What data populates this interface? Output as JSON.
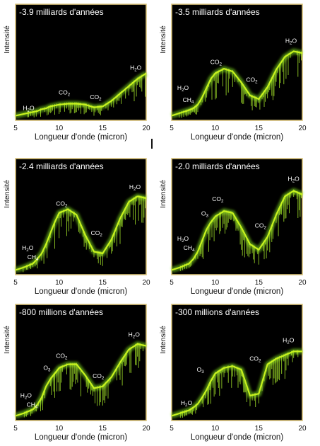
{
  "chart_data": [
    {
      "type": "line",
      "title": "-3.9 milliards d'années",
      "xlabel": "Longueur d'onde (micron)",
      "ylabel": "Intensité",
      "xlim": [
        5,
        20
      ],
      "ylim": [
        0,
        1
      ],
      "xticks": [
        "5",
        "10",
        "15",
        "20"
      ],
      "series_color": "#c8f21e",
      "x": [
        5,
        6,
        7,
        7.5,
        8,
        8.5,
        9,
        9.5,
        10,
        11,
        12,
        13,
        14,
        15,
        16,
        17,
        18,
        19,
        20
      ],
      "y": [
        0.02,
        0.04,
        0.06,
        0.07,
        0.09,
        0.1,
        0.12,
        0.13,
        0.14,
        0.15,
        0.15,
        0.14,
        0.11,
        0.12,
        0.18,
        0.26,
        0.34,
        0.42,
        0.48
      ],
      "annotations": [
        {
          "text": "H₂O",
          "x": 6.5,
          "y": 0.08
        },
        {
          "text": "CO₂",
          "x": 10.6,
          "y": 0.25
        },
        {
          "text": "CO₂",
          "x": 14.2,
          "y": 0.2
        },
        {
          "text": "H₂O",
          "x": 18.8,
          "y": 0.52
        }
      ]
    },
    {
      "type": "line",
      "title": "-3.5 milliards d'années",
      "xlabel": "Longueur d'onde (micron)",
      "ylabel": "Intensité",
      "xlim": [
        5,
        20
      ],
      "ylim": [
        0,
        1
      ],
      "xticks": [
        "5",
        "10",
        "15",
        "20"
      ],
      "series_color": "#c8f21e",
      "x": [
        5,
        6,
        7,
        7.5,
        8,
        8.5,
        9,
        9.5,
        10,
        11,
        12,
        13,
        14,
        15,
        16,
        17,
        18,
        19,
        20
      ],
      "y": [
        0.02,
        0.05,
        0.08,
        0.1,
        0.14,
        0.22,
        0.32,
        0.42,
        0.48,
        0.53,
        0.5,
        0.38,
        0.24,
        0.2,
        0.33,
        0.52,
        0.66,
        0.72,
        0.7
      ],
      "annotations": [
        {
          "text": "H₂O",
          "x": 6.3,
          "y": 0.3
        },
        {
          "text": "CH₄",
          "x": 6.9,
          "y": 0.17
        },
        {
          "text": "CO₂",
          "x": 10.1,
          "y": 0.58
        },
        {
          "text": "CO₂",
          "x": 14.2,
          "y": 0.39
        },
        {
          "text": "H₂O",
          "x": 18.7,
          "y": 0.81
        }
      ]
    },
    {
      "type": "line",
      "title": "-2.4 milliards d'années",
      "xlabel": "Longueur d'onde (micron)",
      "ylabel": "Intensité",
      "xlim": [
        5,
        20
      ],
      "ylim": [
        0,
        1
      ],
      "xticks": [
        "5",
        "10",
        "15",
        "20"
      ],
      "series_color": "#c8f21e",
      "x": [
        5,
        6,
        7,
        7.5,
        8,
        8.5,
        9,
        9.5,
        10,
        11,
        12,
        13,
        14,
        15,
        16,
        17,
        18,
        19,
        20
      ],
      "y": [
        0.02,
        0.05,
        0.09,
        0.14,
        0.2,
        0.3,
        0.42,
        0.54,
        0.64,
        0.68,
        0.62,
        0.4,
        0.22,
        0.2,
        0.35,
        0.58,
        0.76,
        0.82,
        0.8
      ],
      "annotations": [
        {
          "text": "H₂O",
          "x": 6.4,
          "y": 0.24
        },
        {
          "text": "CH₄",
          "x": 7.0,
          "y": 0.14
        },
        {
          "text": "CO₂",
          "x": 10.3,
          "y": 0.72
        },
        {
          "text": "CO₂",
          "x": 14.3,
          "y": 0.4
        },
        {
          "text": "H₂O",
          "x": 18.7,
          "y": 0.9
        }
      ]
    },
    {
      "type": "line",
      "title": "-2.0 milliards d'années",
      "xlabel": "Longueur d'onde (micron)",
      "ylabel": "Intensité",
      "xlim": [
        5,
        20
      ],
      "ylim": [
        0,
        1
      ],
      "xticks": [
        "5",
        "10",
        "15",
        "20"
      ],
      "series_color": "#c8f21e",
      "x": [
        5,
        6,
        7,
        7.5,
        8,
        8.5,
        9,
        9.5,
        10,
        11,
        12,
        13,
        14,
        15,
        16,
        17,
        18,
        19,
        20
      ],
      "y": [
        0.02,
        0.05,
        0.09,
        0.14,
        0.22,
        0.34,
        0.46,
        0.54,
        0.6,
        0.66,
        0.64,
        0.48,
        0.3,
        0.24,
        0.38,
        0.62,
        0.82,
        0.88,
        0.84
      ],
      "annotations": [
        {
          "text": "H₂O",
          "x": 6.3,
          "y": 0.34
        },
        {
          "text": "CH₄",
          "x": 7.0,
          "y": 0.24
        },
        {
          "text": "O₃",
          "x": 8.8,
          "y": 0.61
        },
        {
          "text": "CO₂",
          "x": 10.3,
          "y": 0.77
        },
        {
          "text": "CO₂",
          "x": 15.2,
          "y": 0.48
        },
        {
          "text": "H₂O",
          "x": 19.0,
          "y": 0.99
        }
      ]
    },
    {
      "type": "line",
      "title": "-800 millions d'années",
      "xlabel": "Longueur d'onde (micron)",
      "ylabel": "Intensité",
      "xlim": [
        5,
        20
      ],
      "ylim": [
        0,
        1
      ],
      "xticks": [
        "5",
        "10",
        "15",
        "20"
      ],
      "series_color": "#c8f21e",
      "x": [
        5,
        6,
        7,
        7.5,
        8,
        8.5,
        9,
        9.5,
        10,
        11,
        12,
        13,
        14,
        15,
        16,
        17,
        18,
        19,
        20
      ],
      "y": [
        0.02,
        0.05,
        0.09,
        0.14,
        0.22,
        0.34,
        0.42,
        0.48,
        0.54,
        0.58,
        0.58,
        0.46,
        0.32,
        0.34,
        0.44,
        0.6,
        0.74,
        0.8,
        0.78
      ],
      "annotations": [
        {
          "text": "H₂O",
          "x": 6.2,
          "y": 0.22
        },
        {
          "text": "CH₄",
          "x": 6.9,
          "y": 0.12
        },
        {
          "text": "O₃",
          "x": 8.6,
          "y": 0.52
        },
        {
          "text": "CO₂",
          "x": 10.3,
          "y": 0.65
        },
        {
          "text": "CO₂",
          "x": 14.5,
          "y": 0.43
        },
        {
          "text": "H₂O",
          "x": 18.6,
          "y": 0.88
        }
      ]
    },
    {
      "type": "line",
      "title": "-300 millions d'années",
      "xlabel": "Longueur d'onde (micron)",
      "ylabel": "Intensité",
      "xlim": [
        5,
        20
      ],
      "ylim": [
        0,
        1
      ],
      "xticks": [
        "5",
        "10",
        "15",
        "20"
      ],
      "series_color": "#c8f21e",
      "x": [
        5,
        6,
        7,
        7.5,
        8,
        8.5,
        9,
        9.5,
        10,
        11,
        12,
        13,
        14,
        15,
        16,
        17,
        18,
        19,
        20
      ],
      "y": [
        0.02,
        0.05,
        0.08,
        0.11,
        0.15,
        0.22,
        0.3,
        0.4,
        0.48,
        0.54,
        0.56,
        0.52,
        0.24,
        0.26,
        0.58,
        0.64,
        0.68,
        0.72,
        0.72
      ],
      "annotations": [
        {
          "text": "H₂O",
          "x": 6.7,
          "y": 0.14
        },
        {
          "text": "O₃",
          "x": 8.3,
          "y": 0.5
        },
        {
          "text": "CO₂",
          "x": 14.6,
          "y": 0.62
        },
        {
          "text": "H₂O",
          "x": 18.4,
          "y": 0.82
        }
      ]
    }
  ]
}
